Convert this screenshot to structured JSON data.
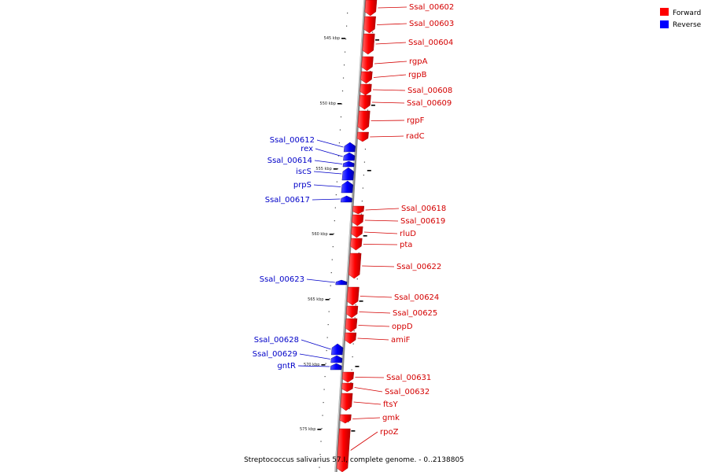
{
  "legend": {
    "items": [
      {
        "label": "Forward",
        "color": "#ff0000"
      },
      {
        "label": "Reverse",
        "color": "#0000ff"
      }
    ]
  },
  "caption": "Streptococcus salivarius 57.I, complete genome. - 0..2138805",
  "ticks": [
    "545 kbp",
    "550 kbp",
    "555 kbp",
    "560 kbp",
    "565 kbp",
    "570 kbp",
    "575 kbp"
  ],
  "forward_genes": [
    "Ssal_00602",
    "Ssal_00603",
    "Ssal_00604",
    "rgpA",
    "rgpB",
    "Ssal_00608",
    "Ssal_00609",
    "rgpF",
    "radC",
    "Ssal_00618",
    "Ssal_00619",
    "rluD",
    "pta",
    "Ssal_00622",
    "Ssal_00624",
    "Ssal_00625",
    "oppD",
    "amiF",
    "Ssal_00631",
    "Ssal_00632",
    "ftsY",
    "gmk",
    "rpoZ"
  ],
  "reverse_genes": [
    "Ssal_00612",
    "rex",
    "Ssal_00614",
    "iscS",
    "prpS",
    "Ssal_00617",
    "Ssal_00623",
    "Ssal_00628",
    "Ssal_00629",
    "gntR"
  ]
}
